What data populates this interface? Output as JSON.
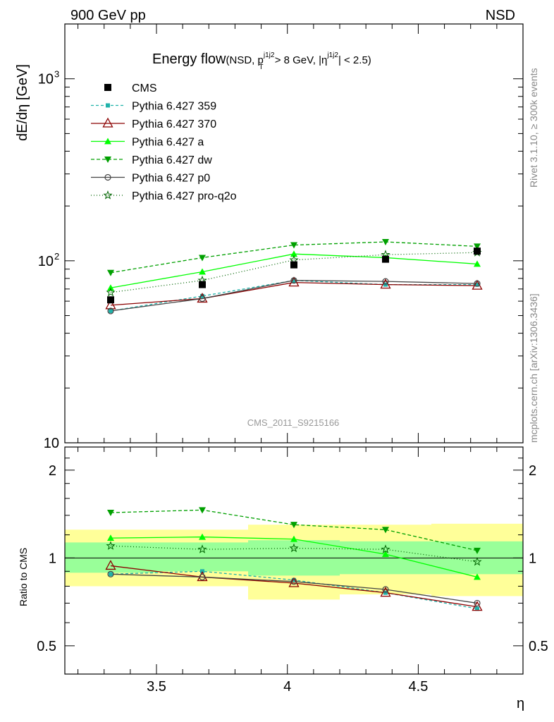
{
  "header": {
    "left": "900 GeV pp",
    "right": "NSD"
  },
  "side_labels": {
    "rivet": "Rivet 3.1.10, ≥ 300k events",
    "mcplots": "mcplots.cern.ch [arXiv:1306.3436]"
  },
  "chart_data": [
    {
      "type": "line",
      "panel": "main",
      "title_main": "Energy flow",
      "title_sub": "(NSD, p",
      "title_sup1": "j1j2",
      "title_sub_T": "T",
      "title_mid": " > 8 GeV, |η",
      "title_sup2": "j1j2",
      "title_end": "| < 2.5)",
      "ylabel": "dE/dη [GeV]",
      "yscale": "log",
      "ylim": [
        10,
        2000
      ],
      "y_ticks": [
        {
          "value": 10,
          "label": "10"
        },
        {
          "value": 100,
          "label": "10",
          "exp": "2"
        },
        {
          "value": 1000,
          "label": "10",
          "exp": "3"
        }
      ],
      "xlim": [
        3.15,
        4.9
      ],
      "watermark": "CMS_2011_S9215166",
      "x": [
        3.325,
        3.675,
        4.025,
        4.375,
        4.725
      ],
      "data_series": {
        "name": "CMS",
        "values": [
          61,
          74,
          95,
          102,
          113
        ],
        "color": "#000000"
      },
      "series": [
        {
          "name": "Pythia 6.427 359",
          "values": [
            53,
            64,
            78,
            74,
            74
          ],
          "color": "#20b2aa",
          "dash": "4,3",
          "marker": "square-small"
        },
        {
          "name": "Pythia 6.427 370",
          "values": [
            57,
            62,
            76,
            74,
            73
          ],
          "color": "#8b0000",
          "dash": "",
          "marker": "triangle-open"
        },
        {
          "name": "Pythia 6.427 a",
          "values": [
            71,
            87,
            109,
            104,
            96
          ],
          "color": "#00ff00",
          "dash": "",
          "marker": "triangle-filled"
        },
        {
          "name": "Pythia 6.427 dw",
          "values": [
            86,
            104,
            122,
            127,
            120
          ],
          "color": "#00a000",
          "dash": "5,3",
          "marker": "triangle-down-filled"
        },
        {
          "name": "Pythia 6.427 p0",
          "values": [
            53,
            62,
            78,
            77,
            75
          ],
          "color": "#444444",
          "dash": "",
          "marker": "circle-open"
        },
        {
          "name": "Pythia 6.427 pro-q2o",
          "values": [
            67,
            78,
            101,
            108,
            111
          ],
          "color": "#006400",
          "dash": "1,3",
          "marker": "star-open"
        }
      ]
    },
    {
      "type": "line",
      "panel": "ratio",
      "ylabel": "Ratio to CMS",
      "xlabel": "η",
      "yscale": "log",
      "ylim": [
        0.4,
        2.4
      ],
      "y_ticks": [
        {
          "value": 0.5,
          "label": "0.5"
        },
        {
          "value": 1,
          "label": "1"
        },
        {
          "value": 2,
          "label": "2"
        }
      ],
      "x_ticks": [
        {
          "value": 3.5,
          "label": "3.5"
        },
        {
          "value": 4,
          "label": "4"
        },
        {
          "value": 4.5,
          "label": "4.5"
        }
      ],
      "x": [
        3.325,
        3.675,
        4.025,
        4.375,
        4.725
      ],
      "bands": [
        {
          "x0": 3.15,
          "x1": 3.5,
          "stat": [
            0.89,
            1.13
          ],
          "total": [
            0.8,
            1.25
          ]
        },
        {
          "x0": 3.5,
          "x1": 3.85,
          "stat": [
            0.9,
            1.13
          ],
          "total": [
            0.8,
            1.25
          ]
        },
        {
          "x0": 3.85,
          "x1": 4.2,
          "stat": [
            0.87,
            1.15
          ],
          "total": [
            0.72,
            1.3
          ]
        },
        {
          "x0": 4.2,
          "x1": 4.55,
          "stat": [
            0.88,
            1.14
          ],
          "total": [
            0.75,
            1.3
          ]
        },
        {
          "x0": 4.55,
          "x1": 4.9,
          "stat": [
            0.88,
            1.14
          ],
          "total": [
            0.74,
            1.31
          ]
        }
      ],
      "series": [
        {
          "name": "Pythia 6.427 359",
          "values": [
            0.88,
            0.9,
            0.84,
            0.76,
            0.67
          ]
        },
        {
          "name": "Pythia 6.427 370",
          "values": [
            0.94,
            0.86,
            0.82,
            0.76,
            0.68
          ]
        },
        {
          "name": "Pythia 6.427 a",
          "values": [
            1.17,
            1.18,
            1.16,
            1.03,
            0.86
          ]
        },
        {
          "name": "Pythia 6.427 dw",
          "values": [
            1.43,
            1.46,
            1.3,
            1.25,
            1.06
          ]
        },
        {
          "name": "Pythia 6.427 p0",
          "values": [
            0.88,
            0.86,
            0.83,
            0.78,
            0.7
          ]
        },
        {
          "name": "Pythia 6.427 pro-q2o",
          "values": [
            1.1,
            1.07,
            1.08,
            1.07,
            0.97
          ]
        }
      ]
    }
  ]
}
